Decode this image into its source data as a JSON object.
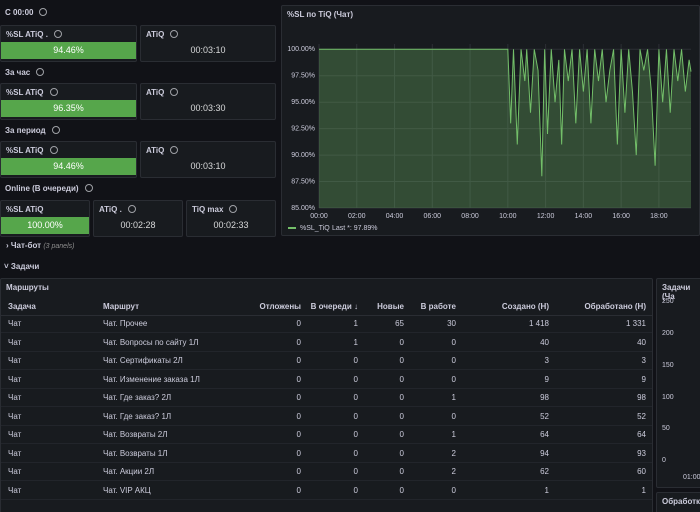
{
  "stat_sections": [
    {
      "title": "С 00:00",
      "panels": [
        {
          "title": "%SL ATiQ .",
          "value": "94.46%"
        },
        {
          "title": "ATiQ",
          "value": "00:03:10"
        }
      ]
    },
    {
      "title": "За час",
      "panels": [
        {
          "title": "%SL ATiQ",
          "value": "96.35%"
        },
        {
          "title": "ATiQ",
          "value": "00:03:30"
        }
      ]
    },
    {
      "title": "За период",
      "panels": [
        {
          "title": "%SL ATiQ",
          "value": "94.46%"
        },
        {
          "title": "ATiQ",
          "value": "00:03:10"
        }
      ]
    },
    {
      "title": "Online (В очереди)",
      "panels": [
        {
          "title": "%SL ATiQ",
          "value": "100.00%"
        },
        {
          "title": "ATiQ .",
          "value": "00:02:28"
        },
        {
          "title": "TiQ max",
          "value": "00:02:33"
        }
      ]
    }
  ],
  "chart_data": {
    "type": "line",
    "title": "%SL по TiQ (Чат)",
    "x": [
      0,
      9.75,
      10,
      10.15,
      10.3,
      10.5,
      10.7,
      10.9,
      11,
      11.2,
      11.4,
      11.6,
      11.8,
      11.95,
      12.1,
      12.3,
      12.5,
      12.7,
      12.85,
      13,
      13.2,
      13.4,
      13.6,
      13.8,
      14,
      14.2,
      14.4,
      14.6,
      14.8,
      15,
      15.2,
      15.4,
      15.6,
      15.8,
      16,
      16.2,
      16.4,
      16.6,
      16.8,
      17,
      17.2,
      17.4,
      17.6,
      17.8,
      18,
      18.2,
      18.4,
      18.6,
      18.8,
      19,
      19.2,
      19.4,
      19.6,
      19.7
    ],
    "series": [
      {
        "name": "%SL_TiQ",
        "color": "#73bf69",
        "values": [
          100,
          100,
          100,
          93,
          100,
          91,
          100,
          97,
          100,
          94,
          100,
          98,
          88,
          100,
          92,
          100,
          95,
          99,
          91,
          100,
          97,
          100,
          93,
          100,
          96,
          100,
          93,
          100,
          97,
          100,
          95,
          98,
          100,
          91,
          100,
          94,
          100,
          96,
          90,
          100,
          98,
          100,
          96,
          89,
          100,
          95,
          100,
          94,
          100,
          97,
          100,
          96,
          99,
          97.89
        ]
      }
    ],
    "legend_value": "Last *: 97.89%",
    "xlim": [
      0,
      19.7
    ],
    "xticks": [
      {
        "value": 0,
        "label": "00:00"
      },
      {
        "value": 2,
        "label": "02:00"
      },
      {
        "value": 4,
        "label": "04:00"
      },
      {
        "value": 6,
        "label": "06:00"
      },
      {
        "value": 8,
        "label": "08:00"
      },
      {
        "value": 10,
        "label": "10:00"
      },
      {
        "value": 12,
        "label": "12:00"
      },
      {
        "value": 14,
        "label": "14:00"
      },
      {
        "value": 16,
        "label": "16:00"
      },
      {
        "value": 18,
        "label": "18:00"
      }
    ],
    "ylim": [
      85,
      100.5
    ],
    "yticks": [
      {
        "value": 100,
        "label": "100.00%"
      },
      {
        "value": 97.5,
        "label": "97.50%"
      },
      {
        "value": 95,
        "label": "95.00%"
      },
      {
        "value": 92.5,
        "label": "92.50%"
      },
      {
        "value": 90,
        "label": "90.00%"
      },
      {
        "value": 87.5,
        "label": "87.50%"
      },
      {
        "value": 85,
        "label": "85.00%"
      }
    ],
    "grid": true
  },
  "rows": [
    {
      "title": "Чат-бот",
      "note": "(3 panels)"
    },
    {
      "title": "Задачи"
    }
  ],
  "table": {
    "title": "Маршруты",
    "header": [
      "Задача",
      "Маршрут",
      "Отложены",
      "В очереди ↓",
      "Новые",
      "В работе",
      "Создано (Н)",
      "Обработано (Н)"
    ],
    "rows": [
      [
        "Чат",
        "Чат. Прочее",
        0,
        1,
        65,
        30,
        "1 418",
        "1 331"
      ],
      [
        "Чат",
        "Чат. Вопросы по сайту 1Л",
        0,
        1,
        0,
        0,
        40,
        40
      ],
      [
        "Чат",
        "Чат. Сертификаты 2Л",
        0,
        0,
        0,
        0,
        3,
        3
      ],
      [
        "Чат",
        "Чат. Изменение заказа 1Л",
        0,
        0,
        0,
        0,
        9,
        9
      ],
      [
        "Чат",
        "Чат. Где заказ? 2Л",
        0,
        0,
        0,
        1,
        98,
        98
      ],
      [
        "Чат",
        "Чат. Где заказ? 1Л",
        0,
        0,
        0,
        0,
        52,
        52
      ],
      [
        "Чат",
        "Чат. Возвраты 2Л",
        0,
        0,
        0,
        1,
        64,
        64
      ],
      [
        "Чат",
        "Чат. Возвраты 1Л",
        0,
        0,
        0,
        2,
        94,
        93
      ],
      [
        "Чат",
        "Чат. Акции 2Л",
        0,
        0,
        0,
        2,
        62,
        60
      ],
      [
        "Чат",
        "Чат. VIP АКЦ",
        0,
        0,
        0,
        0,
        1,
        1
      ]
    ]
  },
  "side_panel": {
    "title": "Задачи (Ча",
    "yticks": [
      250,
      200,
      150,
      100,
      50,
      0
    ],
    "xtick": "01:00"
  },
  "bottom_panel": {
    "title": "Обработка"
  }
}
